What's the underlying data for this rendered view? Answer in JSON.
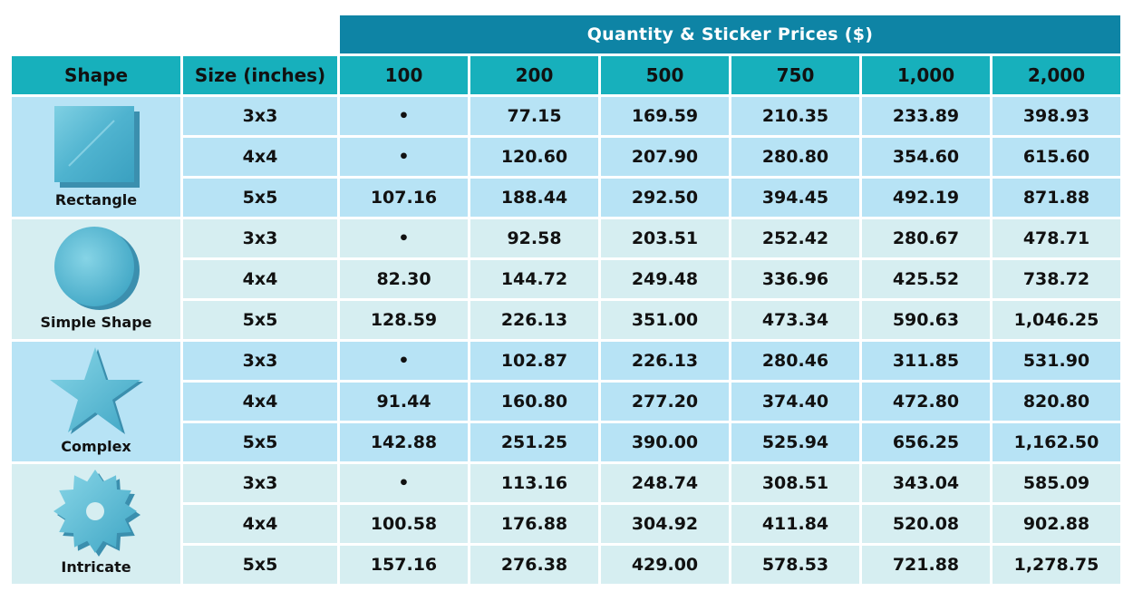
{
  "banner": "Quantity & Sticker Prices ($)",
  "headers": {
    "shape": "Shape",
    "size": "Size (inches)",
    "quantities": [
      "100",
      "200",
      "500",
      "750",
      "1,000",
      "2,000"
    ]
  },
  "groups": [
    {
      "shape": "Rectangle",
      "icon": "square-icon",
      "rows": [
        {
          "size": "3x3",
          "prices": [
            "•",
            "77.15",
            "169.59",
            "210.35",
            "233.89",
            "398.93"
          ]
        },
        {
          "size": "4x4",
          "prices": [
            "•",
            "120.60",
            "207.90",
            "280.80",
            "354.60",
            "615.60"
          ]
        },
        {
          "size": "5x5",
          "prices": [
            "107.16",
            "188.44",
            "292.50",
            "394.45",
            "492.19",
            "871.88"
          ]
        }
      ]
    },
    {
      "shape": "Simple Shape",
      "icon": "circle-icon",
      "rows": [
        {
          "size": "3x3",
          "prices": [
            "•",
            "92.58",
            "203.51",
            "252.42",
            "280.67",
            "478.71"
          ]
        },
        {
          "size": "4x4",
          "prices": [
            "82.30",
            "144.72",
            "249.48",
            "336.96",
            "425.52",
            "738.72"
          ]
        },
        {
          "size": "5x5",
          "prices": [
            "128.59",
            "226.13",
            "351.00",
            "473.34",
            "590.63",
            "1,046.25"
          ]
        }
      ]
    },
    {
      "shape": "Complex",
      "icon": "star-icon",
      "rows": [
        {
          "size": "3x3",
          "prices": [
            "•",
            "102.87",
            "226.13",
            "280.46",
            "311.85",
            "531.90"
          ]
        },
        {
          "size": "4x4",
          "prices": [
            "91.44",
            "160.80",
            "277.20",
            "374.40",
            "472.80",
            "820.80"
          ]
        },
        {
          "size": "5x5",
          "prices": [
            "142.88",
            "251.25",
            "390.00",
            "525.94",
            "656.25",
            "1,162.50"
          ]
        }
      ]
    },
    {
      "shape": "Intricate",
      "icon": "gear-icon",
      "rows": [
        {
          "size": "3x3",
          "prices": [
            "•",
            "113.16",
            "248.74",
            "308.51",
            "343.04",
            "585.09"
          ]
        },
        {
          "size": "4x4",
          "prices": [
            "100.58",
            "176.88",
            "304.92",
            "411.84",
            "520.08",
            "902.88"
          ]
        },
        {
          "size": "5x5",
          "prices": [
            "157.16",
            "276.38",
            "429.00",
            "578.53",
            "721.88",
            "1,278.75"
          ]
        }
      ]
    }
  ],
  "colors": {
    "banner": "#0e84a5",
    "header": "#17b0bc",
    "row_light_blue": "#b7e3f5",
    "row_light_teal": "#d6eef1",
    "shape_fill": "#5cc0d8"
  }
}
